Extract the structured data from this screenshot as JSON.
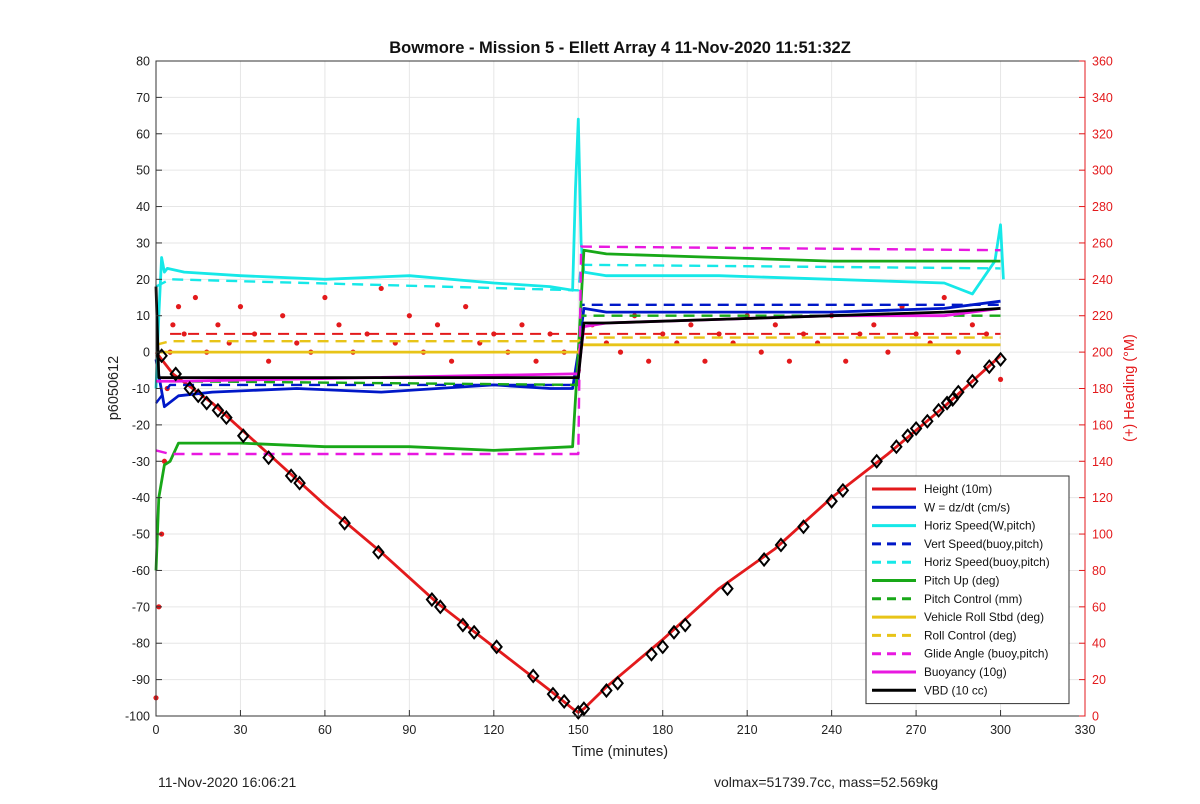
{
  "figure": {
    "title": "Bowmore - Mission 5 - Ellett Array 4 11-Nov-2020 11:51:32Z",
    "footer_left": "11-Nov-2020 16:06:21",
    "footer_right": "volmax=51739.7cc, mass=52.569kg"
  },
  "chart_data": {
    "type": "line",
    "title": "Bowmore - Mission 5 - Ellett Array 4 11-Nov-2020 11:51:32Z",
    "xlabel": "Time (minutes)",
    "ylabel": "p6050612",
    "y2label": "(+) Heading (°M)",
    "xlim": [
      0,
      330
    ],
    "ylim": [
      -100,
      80
    ],
    "y2lim": [
      0,
      360
    ],
    "xticks": [
      0,
      30,
      60,
      90,
      120,
      150,
      180,
      210,
      240,
      270,
      300,
      330
    ],
    "yticks": [
      80,
      70,
      60,
      50,
      40,
      30,
      20,
      10,
      0,
      -10,
      -20,
      -30,
      -40,
      -50,
      -60,
      -70,
      -80,
      -90,
      -100
    ],
    "y2ticks": [
      360,
      340,
      320,
      300,
      280,
      260,
      240,
      220,
      200,
      180,
      160,
      140,
      120,
      100,
      80,
      60,
      40,
      20,
      0
    ],
    "grid": true,
    "legend_position": "bottom-right",
    "colors": {
      "red": "#e31a1c",
      "blue": "#0018c8",
      "cyan": "#16e8e8",
      "green": "#18a818",
      "yellow": "#e8c418",
      "magenta": "#e818e0",
      "black": "#000000",
      "grid": "#e6e6e6",
      "axis": "#333333",
      "right_axis": "#e31a1c"
    },
    "series": [
      {
        "name": "Height (10m)",
        "style": "solid",
        "color": "red",
        "x": [
          0,
          2,
          6,
          20,
          40,
          60,
          80,
          100,
          120,
          140,
          148,
          150,
          152,
          160,
          180,
          200,
          220,
          240,
          260,
          280,
          290,
          300
        ],
        "y": [
          0,
          -2,
          -6,
          -14,
          -28,
          -42,
          -55,
          -69,
          -81,
          -93,
          -98,
          -99,
          -98,
          -92,
          -79,
          -65,
          -54,
          -40,
          -28,
          -15,
          -8,
          -1
        ]
      },
      {
        "name": "W = dz/dt (cm/s)",
        "style": "solid",
        "color": "blue",
        "x": [
          0,
          3,
          8,
          20,
          50,
          80,
          100,
          120,
          140,
          148,
          150,
          152,
          160,
          200,
          240,
          280,
          300
        ],
        "y": [
          -2,
          -15,
          -12,
          -11,
          -10,
          -11,
          -10,
          -9,
          -10,
          -10,
          0,
          12,
          11,
          11,
          11,
          12,
          14
        ]
      },
      {
        "name": "Horiz Speed(W,pitch)",
        "style": "solid",
        "color": "cyan",
        "x": [
          0,
          1,
          2,
          3,
          4,
          10,
          30,
          60,
          90,
          120,
          140,
          148,
          149,
          150,
          151,
          152,
          160,
          200,
          240,
          280,
          290,
          298,
          300,
          301
        ],
        "y": [
          -10,
          10,
          26,
          22,
          23,
          22,
          21,
          20,
          21,
          19,
          18,
          17,
          45,
          64,
          30,
          22,
          21,
          21,
          20,
          19,
          16,
          25,
          35,
          20
        ]
      },
      {
        "name": "Vert Speed(buoy,pitch)",
        "style": "dashed",
        "color": "blue",
        "x": [
          0,
          5,
          150,
          151,
          300
        ],
        "y": [
          -14,
          -9,
          -9,
          13,
          13
        ]
      },
      {
        "name": "Horiz Speed(buoy,pitch)",
        "style": "dashed",
        "color": "cyan",
        "x": [
          0,
          5,
          150,
          151,
          300
        ],
        "y": [
          18,
          20,
          17,
          24,
          23
        ]
      },
      {
        "name": "Pitch Up (deg)",
        "style": "solid",
        "color": "green",
        "x": [
          0,
          1,
          3,
          5,
          8,
          30,
          60,
          90,
          120,
          148,
          150,
          152,
          160,
          200,
          240,
          300
        ],
        "y": [
          -60,
          -40,
          -31,
          -30,
          -25,
          -25,
          -26,
          -26,
          -27,
          -26,
          0,
          28,
          27,
          26,
          25,
          25
        ]
      },
      {
        "name": "Pitch Control (mm)",
        "style": "dashed",
        "color": "green",
        "x": [
          0,
          5,
          150,
          151,
          300
        ],
        "y": [
          -8,
          -8,
          -9,
          10,
          10
        ]
      },
      {
        "name": "Vehicle Roll Stbd (deg)",
        "style": "solid",
        "color": "yellow",
        "x": [
          0,
          5,
          150,
          151,
          300
        ],
        "y": [
          0,
          0,
          0,
          2,
          2
        ]
      },
      {
        "name": "Roll Control (deg)",
        "style": "dashed",
        "color": "yellow",
        "x": [
          0,
          5,
          150,
          151,
          300
        ],
        "y": [
          2,
          3,
          3,
          4,
          4
        ]
      },
      {
        "name": "Glide Angle (buoy,pitch)",
        "style": "dashed",
        "color": "magenta",
        "x": [
          0,
          5,
          150,
          151,
          300
        ],
        "y": [
          -27,
          -28,
          -28,
          29,
          28
        ]
      },
      {
        "name": "Buoyancy (10g)",
        "style": "solid",
        "color": "magenta",
        "x": [
          0,
          8,
          148,
          150,
          152,
          160,
          200,
          240,
          280,
          300
        ],
        "y": [
          -8,
          -8,
          -6,
          -6,
          7,
          8,
          9,
          10,
          10,
          12
        ]
      },
      {
        "name": "VBD (10 cc)",
        "style": "solid",
        "color": "black",
        "x": [
          0,
          1,
          2,
          8,
          148,
          150,
          152,
          160,
          200,
          240,
          280,
          300
        ],
        "y": [
          18,
          -7,
          -7,
          -7,
          -7,
          -7,
          8,
          8,
          9,
          10,
          11,
          12
        ]
      }
    ],
    "heading_series": {
      "axis": "right",
      "color": "red",
      "style": "dotted",
      "mean_lines": [
        {
          "x": [
            5,
            150
          ],
          "y": 210
        },
        {
          "x": [
            151,
            300
          ],
          "y": 210
        }
      ],
      "x": [
        0,
        1,
        2,
        3,
        4,
        5,
        6,
        8,
        10,
        14,
        18,
        22,
        26,
        30,
        35,
        40,
        45,
        50,
        55,
        60,
        65,
        70,
        75,
        80,
        85,
        90,
        95,
        100,
        105,
        110,
        115,
        120,
        125,
        130,
        135,
        140,
        145,
        150,
        155,
        160,
        165,
        170,
        175,
        180,
        185,
        190,
        195,
        200,
        205,
        210,
        215,
        220,
        225,
        230,
        235,
        240,
        245,
        250,
        255,
        260,
        265,
        270,
        275,
        280,
        285,
        290,
        295,
        300
      ],
      "y": [
        10,
        60,
        100,
        140,
        180,
        200,
        215,
        225,
        210,
        230,
        200,
        215,
        205,
        225,
        210,
        195,
        220,
        205,
        200,
        230,
        215,
        200,
        210,
        235,
        205,
        220,
        200,
        215,
        195,
        225,
        205,
        210,
        200,
        215,
        195,
        210,
        200,
        190,
        215,
        205,
        200,
        220,
        195,
        210,
        205,
        215,
        195,
        210,
        205,
        220,
        200,
        215,
        195,
        210,
        205,
        220,
        195,
        210,
        215,
        200,
        225,
        210,
        205,
        230,
        200,
        215,
        210,
        185
      ]
    },
    "depth_markers": {
      "x": [
        2,
        7,
        12,
        15,
        18,
        22,
        25,
        31,
        40,
        48,
        51,
        67,
        79,
        98,
        101,
        109,
        113,
        121,
        134,
        141,
        145,
        150,
        152,
        160,
        164,
        176,
        180,
        184,
        188,
        203,
        216,
        222,
        230,
        240,
        244,
        256,
        263,
        267,
        270,
        274,
        278,
        281,
        283,
        285,
        290,
        296,
        300
      ],
      "y": [
        -1,
        -6,
        -10,
        -12,
        -14,
        -16,
        -18,
        -23,
        -29,
        -34,
        -36,
        -47,
        -55,
        -68,
        -70,
        -75,
        -77,
        -81,
        -89,
        -94,
        -96,
        -99,
        -98,
        -93,
        -91,
        -83,
        -81,
        -77,
        -75,
        -65,
        -57,
        -53,
        -48,
        -41,
        -38,
        -30,
        -26,
        -23,
        -21,
        -19,
        -16,
        -14,
        -13,
        -11,
        -8,
        -4,
        -2
      ]
    }
  }
}
